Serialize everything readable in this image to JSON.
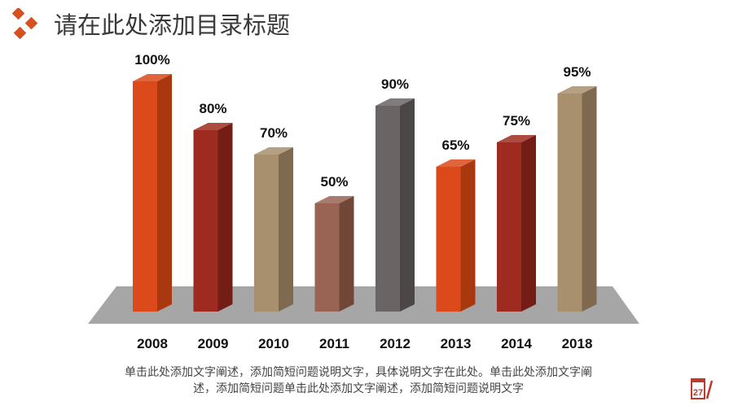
{
  "header": {
    "title": "请在此处添加目录标题"
  },
  "chart_data": {
    "type": "bar",
    "categories": [
      "2008",
      "2009",
      "2010",
      "2011",
      "2012",
      "2013",
      "2014",
      "2018"
    ],
    "values": [
      100,
      80,
      70,
      50,
      90,
      65,
      75,
      95
    ],
    "data_labels": [
      "100%",
      "80%",
      "70%",
      "50%",
      "90%",
      "65%",
      "75%",
      "95%"
    ],
    "ylim": [
      0,
      100
    ],
    "grid": false,
    "colors": [
      [
        "#da4a1b",
        "#a93810"
      ],
      [
        "#9e2b1f",
        "#741d15"
      ],
      [
        "#a88f6e",
        "#7f6a50"
      ],
      [
        "#9a6452",
        "#71473a"
      ],
      [
        "#6b6464",
        "#4c4646"
      ],
      [
        "#da4a1b",
        "#a93810"
      ],
      [
        "#9e2b1f",
        "#741d15"
      ],
      [
        "#a88f6e",
        "#7f6a50"
      ]
    ]
  },
  "caption": {
    "line1": "单击此处添加文字阐述，添加简短问题说明文字，具体说明文字在此处。单击此处添加文字阐",
    "line2": "述，添加简短问题单击此处添加文字阐述，添加简短问题说明文字"
  },
  "icons": {
    "logo": "diamond-cluster-icon",
    "calendar": "calendar-pen-icon",
    "calendar_text": "27"
  },
  "accent": "#d9501e"
}
